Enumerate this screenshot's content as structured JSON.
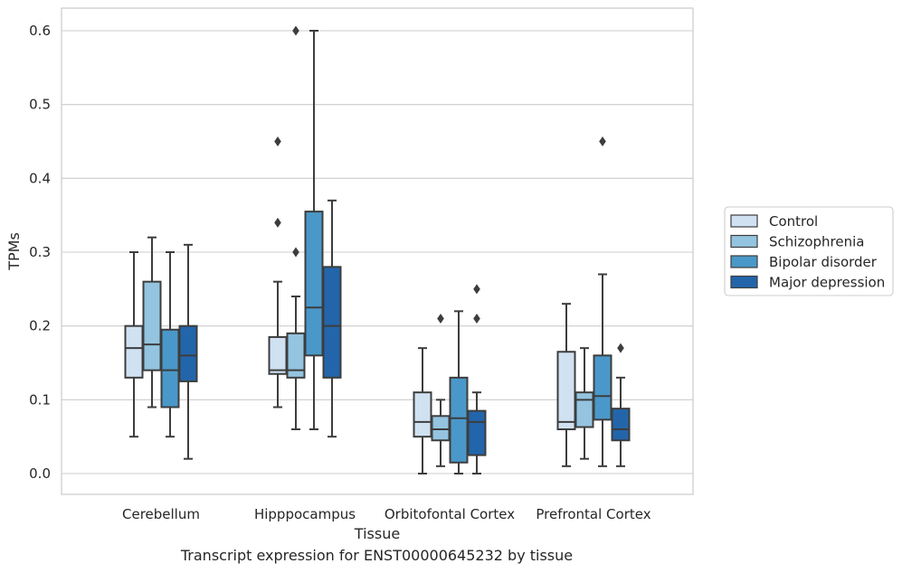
{
  "caption": "Transcript expression for ENST00000645232 by tissue",
  "chart_data": {
    "type": "box",
    "xlabel": "Tissue",
    "ylabel": "TPMs",
    "ylim": [
      -0.03,
      0.63
    ],
    "yticks": [
      0.0,
      0.1,
      0.2,
      0.3,
      0.4,
      0.5,
      0.6
    ],
    "ytick_labels": [
      "0.0",
      "0.1",
      "0.2",
      "0.3",
      "0.4",
      "0.5",
      "0.6"
    ],
    "grid": "horizontal",
    "legend_position": "outside-right",
    "categories": [
      "Cerebellum",
      "Hipppocampus",
      "Orbitofontal Cortex",
      "Prefrontal Cortex"
    ],
    "series": [
      {
        "name": "Control",
        "color": "#d0e1f2",
        "boxes": [
          {
            "whisker_low": 0.05,
            "q1": 0.13,
            "median": 0.17,
            "q3": 0.2,
            "whisker_high": 0.3,
            "outliers": []
          },
          {
            "whisker_low": 0.09,
            "q1": 0.135,
            "median": 0.14,
            "q3": 0.185,
            "whisker_high": 0.26,
            "outliers": [
              0.34,
              0.45
            ]
          },
          {
            "whisker_low": 0.0,
            "q1": 0.05,
            "median": 0.07,
            "q3": 0.11,
            "whisker_high": 0.17,
            "outliers": []
          },
          {
            "whisker_low": 0.01,
            "q1": 0.06,
            "median": 0.07,
            "q3": 0.165,
            "whisker_high": 0.23,
            "outliers": []
          }
        ]
      },
      {
        "name": "Schizophrenia",
        "color": "#94c4df",
        "boxes": [
          {
            "whisker_low": 0.09,
            "q1": 0.14,
            "median": 0.175,
            "q3": 0.26,
            "whisker_high": 0.32,
            "outliers": []
          },
          {
            "whisker_low": 0.06,
            "q1": 0.13,
            "median": 0.14,
            "q3": 0.19,
            "whisker_high": 0.24,
            "outliers": [
              0.3,
              0.6
            ]
          },
          {
            "whisker_low": 0.01,
            "q1": 0.045,
            "median": 0.06,
            "q3": 0.078,
            "whisker_high": 0.1,
            "outliers": [
              0.21
            ]
          },
          {
            "whisker_low": 0.02,
            "q1": 0.063,
            "median": 0.1,
            "q3": 0.11,
            "whisker_high": 0.17,
            "outliers": []
          }
        ]
      },
      {
        "name": "Bipolar disorder",
        "color": "#4a98c9",
        "boxes": [
          {
            "whisker_low": 0.05,
            "q1": 0.09,
            "median": 0.14,
            "q3": 0.195,
            "whisker_high": 0.3,
            "outliers": []
          },
          {
            "whisker_low": 0.06,
            "q1": 0.16,
            "median": 0.225,
            "q3": 0.355,
            "whisker_high": 0.6,
            "outliers": []
          },
          {
            "whisker_low": 0.0,
            "q1": 0.015,
            "median": 0.075,
            "q3": 0.13,
            "whisker_high": 0.22,
            "outliers": []
          },
          {
            "whisker_low": 0.01,
            "q1": 0.073,
            "median": 0.105,
            "q3": 0.16,
            "whisker_high": 0.27,
            "outliers": [
              0.45
            ]
          }
        ]
      },
      {
        "name": "Major depression",
        "color": "#2365aa",
        "boxes": [
          {
            "whisker_low": 0.02,
            "q1": 0.125,
            "median": 0.16,
            "q3": 0.2,
            "whisker_high": 0.31,
            "outliers": []
          },
          {
            "whisker_low": 0.05,
            "q1": 0.13,
            "median": 0.2,
            "q3": 0.28,
            "whisker_high": 0.37,
            "outliers": []
          },
          {
            "whisker_low": 0.0,
            "q1": 0.025,
            "median": 0.07,
            "q3": 0.085,
            "whisker_high": 0.11,
            "outliers": [
              0.21,
              0.25
            ]
          },
          {
            "whisker_low": 0.01,
            "q1": 0.045,
            "median": 0.06,
            "q3": 0.088,
            "whisker_high": 0.13,
            "outliers": [
              0.17
            ]
          }
        ]
      }
    ]
  }
}
